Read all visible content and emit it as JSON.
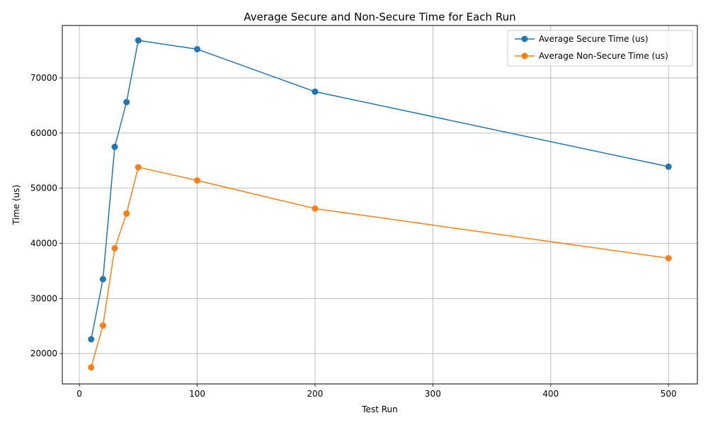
{
  "chart_data": {
    "type": "line",
    "title": "Average Secure and Non-Secure Time for Each Run",
    "xlabel": "Test Run",
    "ylabel": "Time (us)",
    "xlim": [
      -14.5,
      524.5
    ],
    "ylim": [
      14500,
      79500
    ],
    "xticks": [
      0,
      100,
      200,
      300,
      400,
      500
    ],
    "yticks": [
      20000,
      30000,
      40000,
      50000,
      60000,
      70000
    ],
    "grid": true,
    "legend_position": "top-right",
    "x": [
      10,
      20,
      30,
      40,
      50,
      100,
      200,
      500
    ],
    "series": [
      {
        "name": "Average Secure Time (us)",
        "color": "#1f77b4",
        "marker": "circle",
        "values": [
          22600,
          33500,
          57500,
          65600,
          76800,
          75200,
          67500,
          53900
        ]
      },
      {
        "name": "Average Non-Secure Time (us)",
        "color": "#ff7f0e",
        "marker": "circle",
        "values": [
          17500,
          25100,
          39100,
          45400,
          53800,
          51400,
          46300,
          37300
        ]
      }
    ]
  }
}
